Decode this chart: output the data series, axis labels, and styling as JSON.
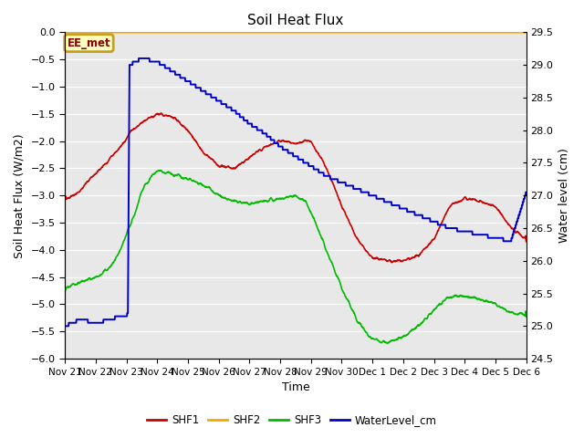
{
  "title": "Soil Heat Flux",
  "ylabel_left": "Soil Heat Flux (W/m2)",
  "ylabel_right": "Water level (cm)",
  "xlabel": "Time",
  "ylim_left": [
    -6.0,
    0.0
  ],
  "ylim_right": [
    24.5,
    29.5
  ],
  "yticks_left": [
    0.0,
    -0.5,
    -1.0,
    -1.5,
    -2.0,
    -2.5,
    -3.0,
    -3.5,
    -4.0,
    -4.5,
    -5.0,
    -5.5,
    -6.0
  ],
  "yticks_right": [
    24.5,
    25.0,
    25.5,
    26.0,
    26.5,
    27.0,
    27.5,
    28.0,
    28.5,
    29.0,
    29.5
  ],
  "bg_color": "#e8e8e8",
  "grid_color": "#ffffff",
  "annotation_label": "EE_met",
  "annotation_border_color": "#c8a020",
  "annotation_face_color": "#ffffc0",
  "annotation_text_color": "#8B0000",
  "shf2_color": "#ffa500",
  "shf1_color": "#cc0000",
  "shf3_color": "#00bb00",
  "water_color": "#0000cc",
  "day_labels": [
    "Nov 21",
    "Nov 22",
    "Nov 23",
    "Nov 24",
    "Nov 25",
    "Nov 26",
    "Nov 27",
    "Nov 28",
    "Nov 29",
    "Nov 30",
    "Dec 1",
    "Dec 2",
    "Dec 3",
    "Dec 4",
    "Dec 5",
    "Dec 6"
  ],
  "shf1_keypoints_x": [
    0,
    0.5,
    1.0,
    1.5,
    1.8,
    2.0,
    2.1,
    2.3,
    2.5,
    2.7,
    3.0,
    3.2,
    3.5,
    4.0,
    4.5,
    5.0,
    5.5,
    6.0,
    6.5,
    7.0,
    7.5,
    7.8,
    8.0,
    8.5,
    9.0,
    9.5,
    10.0,
    10.5,
    11.0,
    11.5,
    12.0,
    12.5,
    13.0,
    13.5,
    14.0,
    14.5,
    15.0
  ],
  "shf1_keypoints_y": [
    -3.1,
    -2.9,
    -2.6,
    -2.3,
    -2.1,
    -1.95,
    -1.85,
    -1.75,
    -1.65,
    -1.58,
    -1.5,
    -1.52,
    -1.55,
    -1.8,
    -2.2,
    -2.45,
    -2.5,
    -2.3,
    -2.1,
    -2.0,
    -2.05,
    -2.0,
    -2.0,
    -2.5,
    -3.2,
    -3.8,
    -4.15,
    -4.2,
    -4.2,
    -4.1,
    -3.8,
    -3.2,
    -3.05,
    -3.1,
    -3.2,
    -3.6,
    -3.8
  ],
  "shf3_keypoints_x": [
    0,
    0.5,
    1.0,
    1.5,
    1.8,
    2.0,
    2.3,
    2.5,
    2.8,
    3.0,
    3.5,
    4.0,
    4.5,
    5.0,
    5.5,
    6.0,
    6.5,
    7.0,
    7.5,
    7.8,
    8.0,
    8.5,
    9.0,
    9.5,
    10.0,
    10.5,
    11.0,
    11.5,
    12.0,
    12.5,
    13.0,
    13.5,
    14.0,
    14.5,
    15.0
  ],
  "shf3_keypoints_y": [
    -4.7,
    -4.6,
    -4.5,
    -4.3,
    -4.0,
    -3.7,
    -3.3,
    -2.9,
    -2.65,
    -2.55,
    -2.6,
    -2.7,
    -2.8,
    -3.0,
    -3.1,
    -3.15,
    -3.1,
    -3.05,
    -3.0,
    -3.1,
    -3.3,
    -4.0,
    -4.7,
    -5.3,
    -5.65,
    -5.7,
    -5.6,
    -5.4,
    -5.1,
    -4.85,
    -4.85,
    -4.9,
    -5.0,
    -5.15,
    -5.2
  ],
  "water_keypoints_x": [
    0,
    0.5,
    1.0,
    1.5,
    1.75,
    2.0,
    2.05,
    2.1,
    2.3,
    2.5,
    3.0,
    3.5,
    4.0,
    4.5,
    5.0,
    5.5,
    6.0,
    6.5,
    7.0,
    7.5,
    8.0,
    8.5,
    9.0,
    9.5,
    10.0,
    10.5,
    11.0,
    11.5,
    12.0,
    12.5,
    13.0,
    13.5,
    14.0,
    14.5,
    15.0
  ],
  "water_keypoints_y": [
    25.0,
    25.1,
    25.05,
    25.1,
    25.15,
    25.15,
    25.2,
    29.0,
    29.05,
    29.1,
    29.05,
    28.9,
    28.75,
    28.6,
    28.45,
    28.3,
    28.1,
    27.95,
    27.75,
    27.6,
    27.45,
    27.3,
    27.2,
    27.1,
    27.0,
    26.9,
    26.8,
    26.7,
    26.6,
    26.5,
    26.45,
    26.4,
    26.35,
    26.3,
    27.05
  ]
}
